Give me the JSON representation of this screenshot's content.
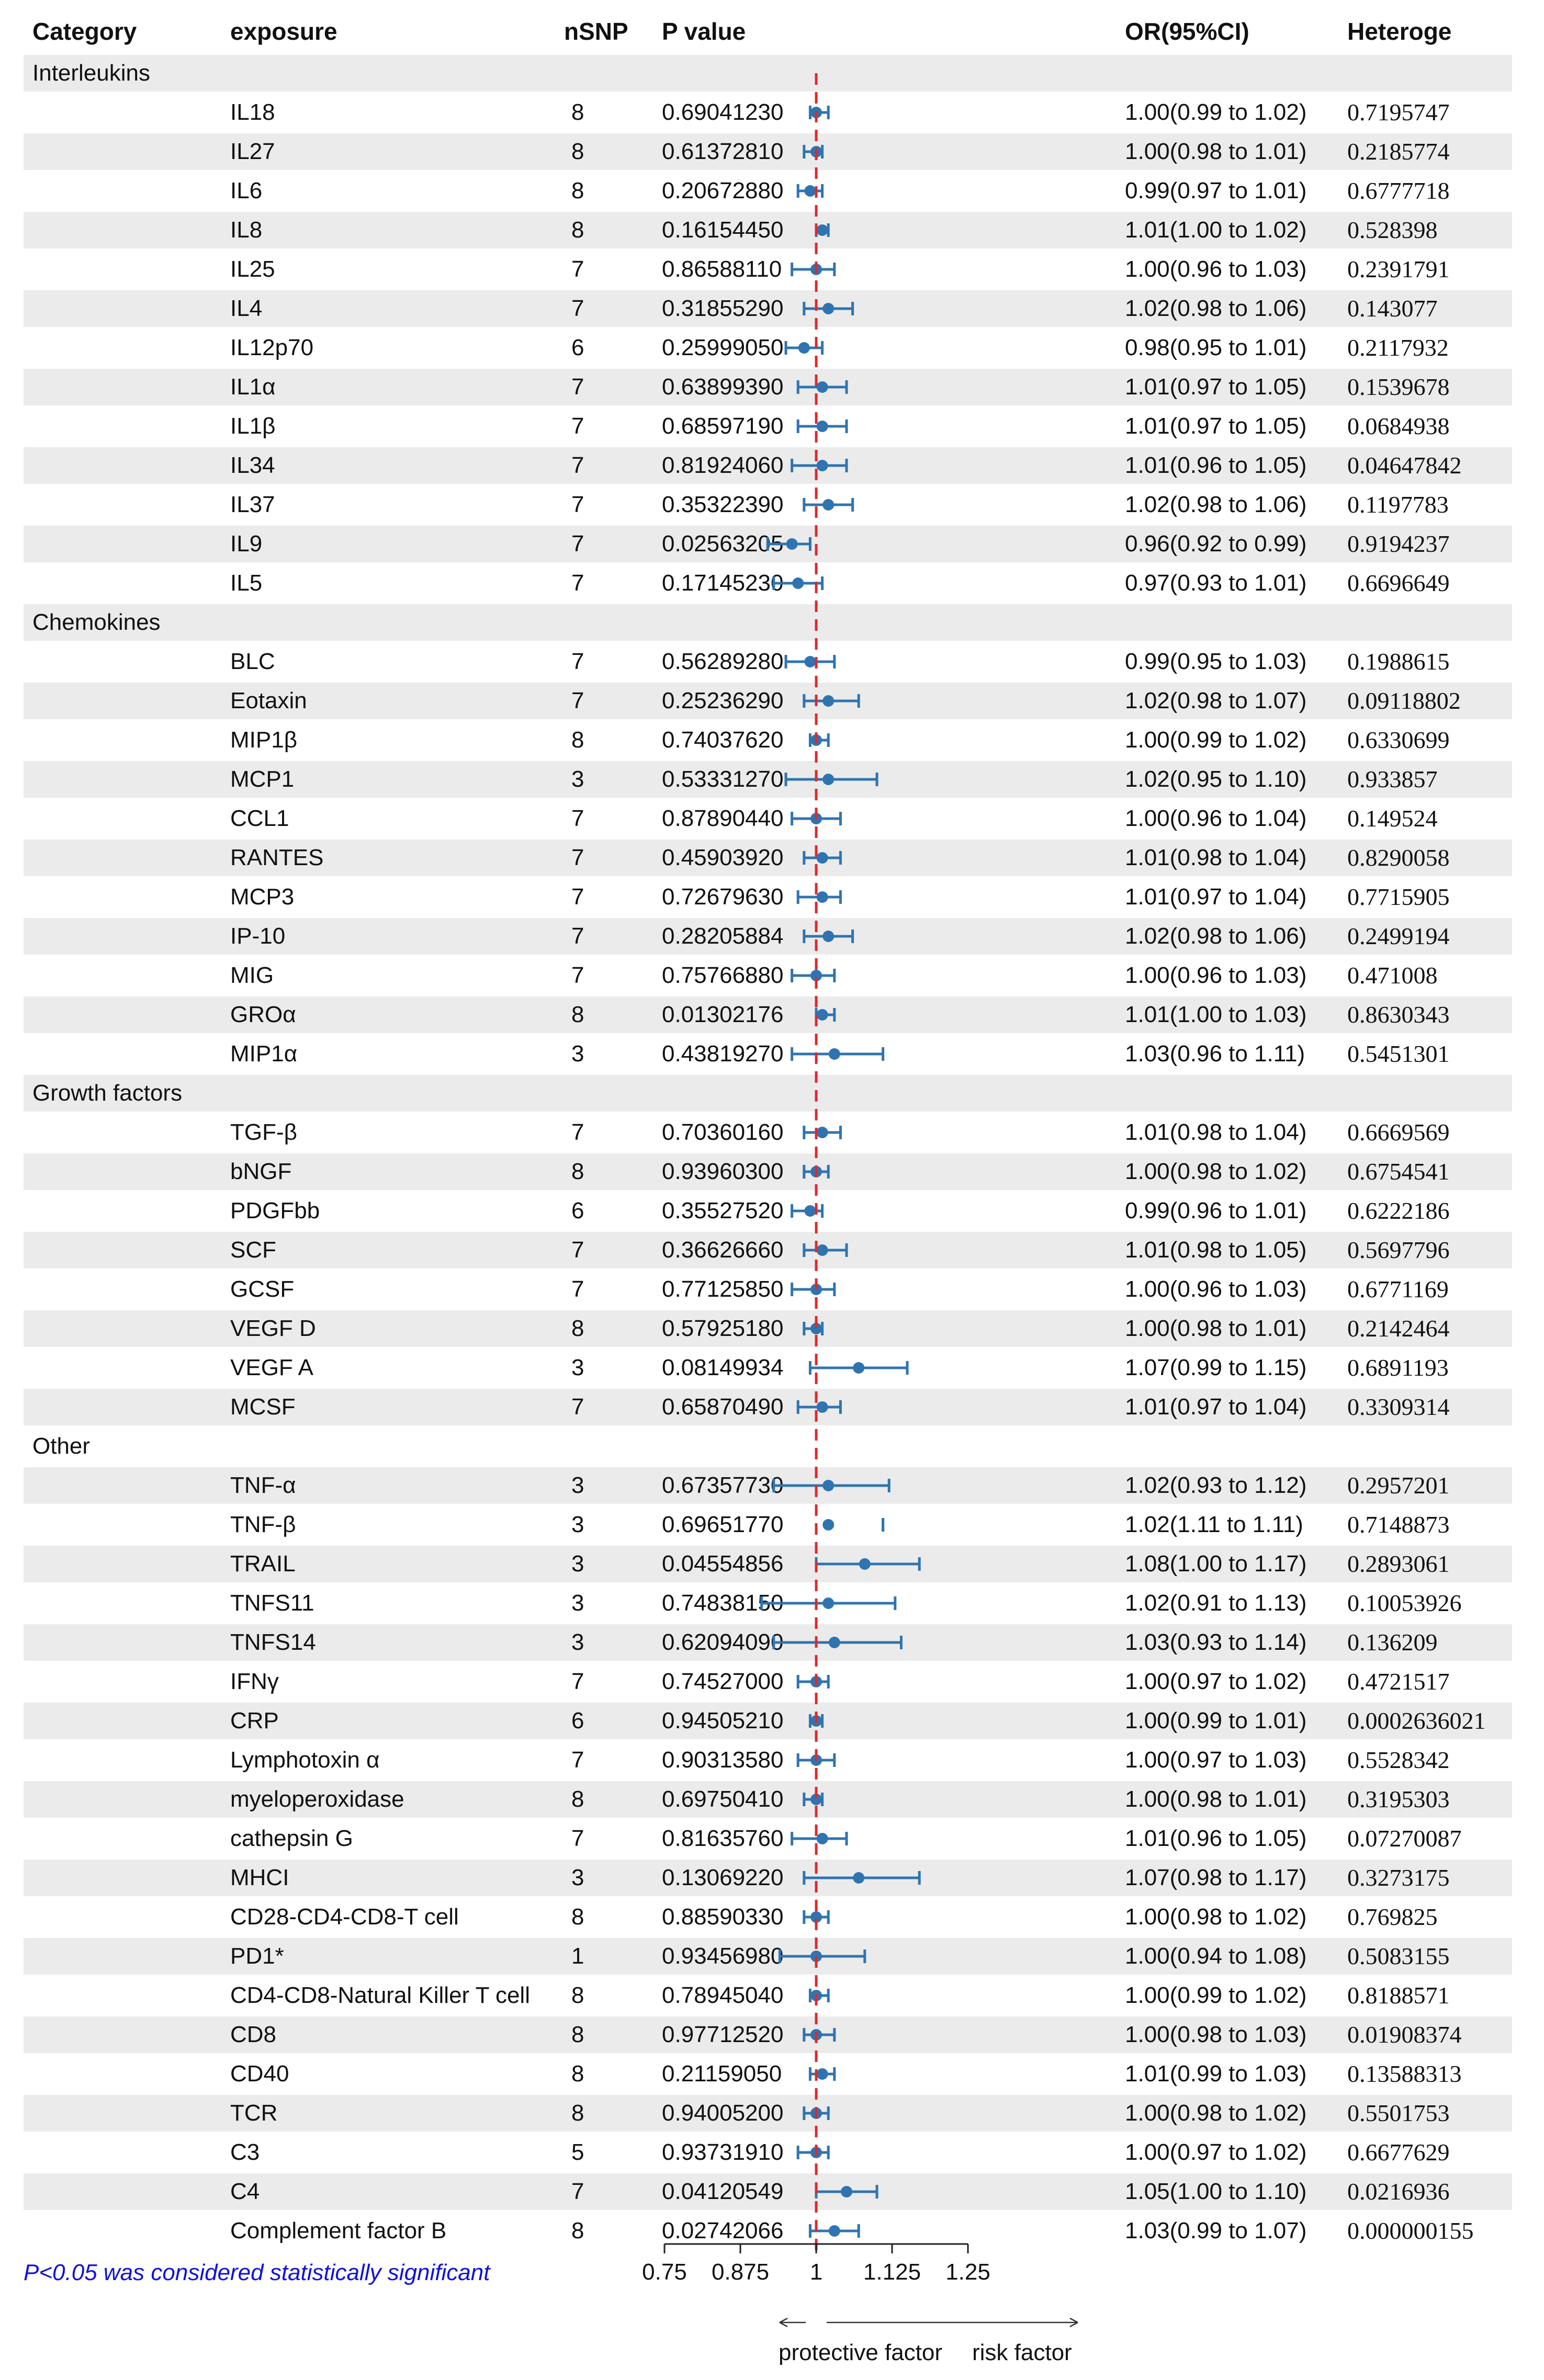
{
  "chart_data": {
    "type": "forest",
    "columns": [
      "Category",
      "exposure",
      "nSNP",
      "P value",
      "OR(95%CI)",
      "Heteroge"
    ],
    "xaxis": {
      "reference": 1,
      "xlim": [
        0.75,
        1.25
      ],
      "ticks": [
        0.75,
        0.875,
        1,
        1.125,
        1.25
      ],
      "tick_labels": [
        "0.75",
        "0.875",
        "1",
        "1.125",
        "1.25"
      ],
      "left_label": "protective factor",
      "right_label": "risk factor"
    },
    "footnote": "P<0.05 was considered statistically significant",
    "groups": [
      {
        "category": "Interleukins",
        "items": [
          {
            "exposure": "IL18",
            "nsnp": "8",
            "p": "0.69041230",
            "or_ci": "1.00(0.99 to 1.02)",
            "het": "0.7195747",
            "or": 1.0,
            "lo": 0.99,
            "hi": 1.02
          },
          {
            "exposure": "IL27",
            "nsnp": "8",
            "p": "0.61372810",
            "or_ci": "1.00(0.98 to 1.01)",
            "het": "0.2185774",
            "or": 1.0,
            "lo": 0.98,
            "hi": 1.01
          },
          {
            "exposure": "IL6",
            "nsnp": "8",
            "p": "0.20672880",
            "or_ci": "0.99(0.97 to 1.01)",
            "het": "0.6777718",
            "or": 0.99,
            "lo": 0.97,
            "hi": 1.01
          },
          {
            "exposure": "IL8",
            "nsnp": "8",
            "p": "0.16154450",
            "or_ci": "1.01(1.00 to 1.02)",
            "het": "0.528398",
            "or": 1.01,
            "lo": 1.0,
            "hi": 1.02
          },
          {
            "exposure": "IL25",
            "nsnp": "7",
            "p": "0.86588110",
            "or_ci": "1.00(0.96 to 1.03)",
            "het": "0.2391791",
            "or": 1.0,
            "lo": 0.96,
            "hi": 1.03
          },
          {
            "exposure": "IL4",
            "nsnp": "7",
            "p": "0.31855290",
            "or_ci": "1.02(0.98 to 1.06)",
            "het": "0.143077",
            "or": 1.02,
            "lo": 0.98,
            "hi": 1.06
          },
          {
            "exposure": "IL12p70",
            "nsnp": "6",
            "p": "0.25999050",
            "or_ci": "0.98(0.95 to 1.01)",
            "het": "0.2117932",
            "or": 0.98,
            "lo": 0.95,
            "hi": 1.01
          },
          {
            "exposure": "IL1α",
            "nsnp": "7",
            "p": "0.63899390",
            "or_ci": "1.01(0.97 to 1.05)",
            "het": "0.1539678",
            "or": 1.01,
            "lo": 0.97,
            "hi": 1.05
          },
          {
            "exposure": "IL1β",
            "nsnp": "7",
            "p": "0.68597190",
            "or_ci": "1.01(0.97 to 1.05)",
            "het": "0.0684938",
            "or": 1.01,
            "lo": 0.97,
            "hi": 1.05
          },
          {
            "exposure": "IL34",
            "nsnp": "7",
            "p": "0.81924060",
            "or_ci": "1.01(0.96 to 1.05)",
            "het": "0.04647842",
            "or": 1.01,
            "lo": 0.96,
            "hi": 1.05
          },
          {
            "exposure": "IL37",
            "nsnp": "7",
            "p": "0.35322390",
            "or_ci": "1.02(0.98 to 1.06)",
            "het": "0.1197783",
            "or": 1.02,
            "lo": 0.98,
            "hi": 1.06
          },
          {
            "exposure": "IL9",
            "nsnp": "7",
            "p": "0.02563205",
            "or_ci": "0.96(0.92 to 0.99)",
            "het": "0.9194237",
            "or": 0.96,
            "lo": 0.92,
            "hi": 0.99
          },
          {
            "exposure": "IL5",
            "nsnp": "7",
            "p": "0.17145230",
            "or_ci": "0.97(0.93 to 1.01)",
            "het": "0.6696649",
            "or": 0.97,
            "lo": 0.93,
            "hi": 1.01
          }
        ]
      },
      {
        "category": "Chemokines",
        "items": [
          {
            "exposure": "BLC",
            "nsnp": "7",
            "p": "0.56289280",
            "or_ci": "0.99(0.95 to 1.03)",
            "het": "0.1988615",
            "or": 0.99,
            "lo": 0.95,
            "hi": 1.03
          },
          {
            "exposure": "Eotaxin",
            "nsnp": "7",
            "p": "0.25236290",
            "or_ci": "1.02(0.98 to 1.07)",
            "het": "0.09118802",
            "or": 1.02,
            "lo": 0.98,
            "hi": 1.07
          },
          {
            "exposure": "MIP1β",
            "nsnp": "8",
            "p": "0.74037620",
            "or_ci": "1.00(0.99 to 1.02)",
            "het": "0.6330699",
            "or": 1.0,
            "lo": 0.99,
            "hi": 1.02
          },
          {
            "exposure": "MCP1",
            "nsnp": "3",
            "p": "0.53331270",
            "or_ci": "1.02(0.95 to 1.10)",
            "het": "0.933857",
            "or": 1.02,
            "lo": 0.95,
            "hi": 1.1
          },
          {
            "exposure": "CCL1",
            "nsnp": "7",
            "p": "0.87890440",
            "or_ci": "1.00(0.96 to 1.04)",
            "het": "0.149524",
            "or": 1.0,
            "lo": 0.96,
            "hi": 1.04
          },
          {
            "exposure": "RANTES",
            "nsnp": "7",
            "p": "0.45903920",
            "or_ci": "1.01(0.98 to 1.04)",
            "het": "0.8290058",
            "or": 1.01,
            "lo": 0.98,
            "hi": 1.04
          },
          {
            "exposure": "MCP3",
            "nsnp": "7",
            "p": "0.72679630",
            "or_ci": "1.01(0.97 to 1.04)",
            "het": "0.7715905",
            "or": 1.01,
            "lo": 0.97,
            "hi": 1.04
          },
          {
            "exposure": "IP-10",
            "nsnp": "7",
            "p": "0.28205884",
            "or_ci": "1.02(0.98 to 1.06)",
            "het": "0.2499194",
            "or": 1.02,
            "lo": 0.98,
            "hi": 1.06
          },
          {
            "exposure": "MIG",
            "nsnp": "7",
            "p": "0.75766880",
            "or_ci": "1.00(0.96 to 1.03)",
            "het": "0.471008",
            "or": 1.0,
            "lo": 0.96,
            "hi": 1.03
          },
          {
            "exposure": "GROα",
            "nsnp": "8",
            "p": "0.01302176",
            "or_ci": "1.01(1.00 to 1.03)",
            "het": "0.8630343",
            "or": 1.01,
            "lo": 1.0,
            "hi": 1.03
          },
          {
            "exposure": "MIP1α",
            "nsnp": "3",
            "p": "0.43819270",
            "or_ci": "1.03(0.96 to 1.11)",
            "het": "0.5451301",
            "or": 1.03,
            "lo": 0.96,
            "hi": 1.11
          }
        ]
      },
      {
        "category": "Growth factors",
        "items": [
          {
            "exposure": "TGF-β",
            "nsnp": "7",
            "p": "0.70360160",
            "or_ci": "1.01(0.98 to 1.04)",
            "het": "0.6669569",
            "or": 1.01,
            "lo": 0.98,
            "hi": 1.04
          },
          {
            "exposure": "bNGF",
            "nsnp": "8",
            "p": "0.93960300",
            "or_ci": "1.00(0.98 to 1.02)",
            "het": "0.6754541",
            "or": 1.0,
            "lo": 0.98,
            "hi": 1.02
          },
          {
            "exposure": "PDGFbb",
            "nsnp": "6",
            "p": "0.35527520",
            "or_ci": "0.99(0.96 to 1.01)",
            "het": "0.6222186",
            "or": 0.99,
            "lo": 0.96,
            "hi": 1.01
          },
          {
            "exposure": "SCF",
            "nsnp": "7",
            "p": "0.36626660",
            "or_ci": "1.01(0.98 to 1.05)",
            "het": "0.5697796",
            "or": 1.01,
            "lo": 0.98,
            "hi": 1.05
          },
          {
            "exposure": "GCSF",
            "nsnp": "7",
            "p": "0.77125850",
            "or_ci": "1.00(0.96 to 1.03)",
            "het": "0.6771169",
            "or": 1.0,
            "lo": 0.96,
            "hi": 1.03
          },
          {
            "exposure": "VEGF D",
            "nsnp": "8",
            "p": "0.57925180",
            "or_ci": "1.00(0.98 to 1.01)",
            "het": "0.2142464",
            "or": 1.0,
            "lo": 0.98,
            "hi": 1.01
          },
          {
            "exposure": "VEGF A",
            "nsnp": "3",
            "p": "0.08149934",
            "or_ci": "1.07(0.99 to 1.15)",
            "het": "0.6891193",
            "or": 1.07,
            "lo": 0.99,
            "hi": 1.15
          },
          {
            "exposure": "MCSF",
            "nsnp": "7",
            "p": "0.65870490",
            "or_ci": "1.01(0.97 to 1.04)",
            "het": "0.3309314",
            "or": 1.01,
            "lo": 0.97,
            "hi": 1.04
          }
        ]
      },
      {
        "category": "Other",
        "items": [
          {
            "exposure": "TNF-α",
            "nsnp": "3",
            "p": "0.67357730",
            "or_ci": "1.02(0.93 to 1.12)",
            "het": "0.2957201",
            "or": 1.02,
            "lo": 0.93,
            "hi": 1.12
          },
          {
            "exposure": "TNF-β",
            "nsnp": "3",
            "p": "0.69651770",
            "or_ci": "1.02(1.11 to 1.11)",
            "het": "0.7148873",
            "or": 1.02,
            "lo": 1.11,
            "hi": 1.11
          },
          {
            "exposure": "TRAIL",
            "nsnp": "3",
            "p": "0.04554856",
            "or_ci": "1.08(1.00 to 1.17)",
            "het": "0.2893061",
            "or": 1.08,
            "lo": 1.0,
            "hi": 1.17
          },
          {
            "exposure": "TNFS11",
            "nsnp": "3",
            "p": "0.74838150",
            "or_ci": "1.02(0.91 to 1.13)",
            "het": "0.10053926",
            "or": 1.02,
            "lo": 0.91,
            "hi": 1.13
          },
          {
            "exposure": "TNFS14",
            "nsnp": "3",
            "p": "0.62094090",
            "or_ci": "1.03(0.93 to 1.14)",
            "het": "0.136209",
            "or": 1.03,
            "lo": 0.93,
            "hi": 1.14
          },
          {
            "exposure": "IFNγ",
            "nsnp": "7",
            "p": "0.74527000",
            "or_ci": "1.00(0.97 to 1.02)",
            "het": "0.4721517",
            "or": 1.0,
            "lo": 0.97,
            "hi": 1.02
          },
          {
            "exposure": "CRP",
            "nsnp": "6",
            "p": "0.94505210",
            "or_ci": "1.00(0.99 to 1.01)",
            "het": "0.0002636021",
            "or": 1.0,
            "lo": 0.99,
            "hi": 1.01
          },
          {
            "exposure": "Lymphotoxin α",
            "nsnp": "7",
            "p": "0.90313580",
            "or_ci": "1.00(0.97 to 1.03)",
            "het": "0.5528342",
            "or": 1.0,
            "lo": 0.97,
            "hi": 1.03
          },
          {
            "exposure": "myeloperoxidase",
            "nsnp": "8",
            "p": "0.69750410",
            "or_ci": "1.00(0.98 to 1.01)",
            "het": "0.3195303",
            "or": 1.0,
            "lo": 0.98,
            "hi": 1.01
          },
          {
            "exposure": "cathepsin G",
            "nsnp": "7",
            "p": "0.81635760",
            "or_ci": "1.01(0.96 to 1.05)",
            "het": "0.07270087",
            "or": 1.01,
            "lo": 0.96,
            "hi": 1.05
          },
          {
            "exposure": "MHCI",
            "nsnp": "3",
            "p": "0.13069220",
            "or_ci": "1.07(0.98 to 1.17)",
            "het": "0.3273175",
            "or": 1.07,
            "lo": 0.98,
            "hi": 1.17
          },
          {
            "exposure": "CD28-CD4-CD8-T cell",
            "nsnp": "8",
            "p": "0.88590330",
            "or_ci": "1.00(0.98 to 1.02)",
            "het": "0.769825",
            "or": 1.0,
            "lo": 0.98,
            "hi": 1.02
          },
          {
            "exposure": "PD1*",
            "nsnp": "1",
            "p": "0.93456980",
            "or_ci": "1.00(0.94 to 1.08)",
            "het": "0.5083155",
            "or": 1.0,
            "lo": 0.94,
            "hi": 1.08
          },
          {
            "exposure": "CD4-CD8-Natural Killer T cell",
            "nsnp": "8",
            "p": "0.78945040",
            "or_ci": "1.00(0.99 to 1.02)",
            "het": "0.8188571",
            "or": 1.0,
            "lo": 0.99,
            "hi": 1.02
          },
          {
            "exposure": "CD8",
            "nsnp": "8",
            "p": "0.97712520",
            "or_ci": "1.00(0.98 to 1.03)",
            "het": "0.01908374",
            "or": 1.0,
            "lo": 0.98,
            "hi": 1.03
          },
          {
            "exposure": "CD40",
            "nsnp": "8",
            "p": "0.21159050",
            "or_ci": "1.01(0.99 to 1.03)",
            "het": "0.13588313",
            "or": 1.01,
            "lo": 0.99,
            "hi": 1.03
          },
          {
            "exposure": "TCR",
            "nsnp": "8",
            "p": "0.94005200",
            "or_ci": "1.00(0.98 to 1.02)",
            "het": "0.5501753",
            "or": 1.0,
            "lo": 0.98,
            "hi": 1.02
          },
          {
            "exposure": "C3",
            "nsnp": "5",
            "p": "0.93731910",
            "or_ci": "1.00(0.97 to 1.02)",
            "het": "0.6677629",
            "or": 1.0,
            "lo": 0.97,
            "hi": 1.02
          },
          {
            "exposure": "C4",
            "nsnp": "7",
            "p": "0.04120549",
            "or_ci": "1.05(1.00 to 1.10)",
            "het": "0.0216936",
            "or": 1.05,
            "lo": 1.0,
            "hi": 1.1
          },
          {
            "exposure": "Complement factor B",
            "nsnp": "8",
            "p": "0.02742066",
            "or_ci": "1.03(0.99 to 1.07)",
            "het": "0.000000155",
            "or": 1.03,
            "lo": 0.99,
            "hi": 1.07
          }
        ]
      }
    ]
  },
  "colors": {
    "point": "#2f74b0",
    "reference_line": "#e0282a",
    "shade": "#ebebeb",
    "footnote": "#1010e0"
  }
}
